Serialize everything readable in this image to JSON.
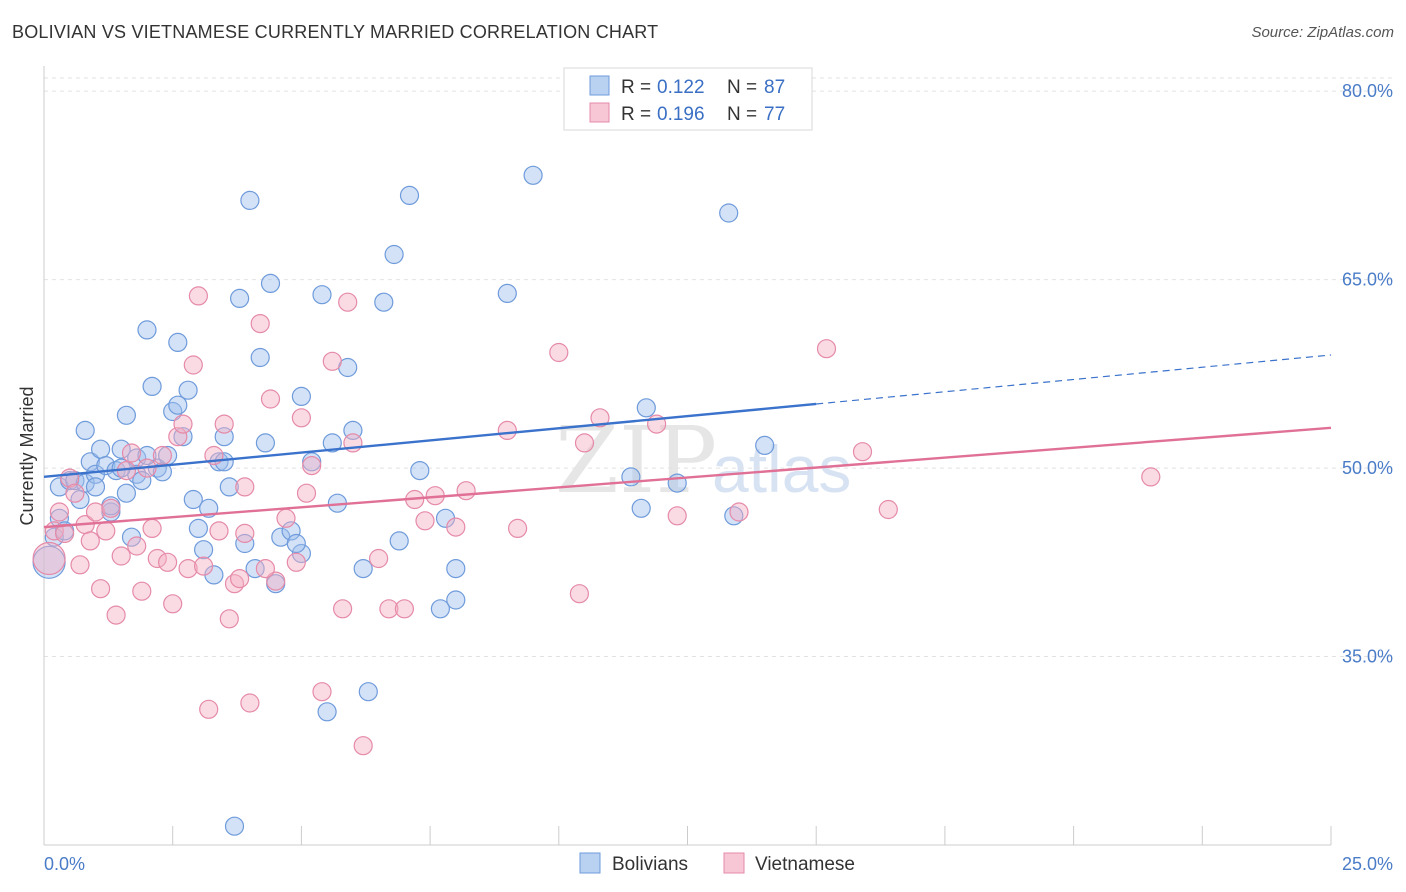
{
  "header": {
    "title": "BOLIVIAN VS VIETNAMESE CURRENTLY MARRIED CORRELATION CHART",
    "source": "Source: ZipAtlas.com"
  },
  "watermark": {
    "part1": "ZIP",
    "part2": "atlas"
  },
  "legend": {
    "r_label": "R =",
    "n_label": "N =",
    "entries": [
      {
        "name": "Bolivians",
        "r": "0.122",
        "n": "87",
        "color": "#9dbfed",
        "line": "#3a72cc"
      },
      {
        "name": "Vietnamese",
        "r": "0.196",
        "n": "77",
        "color": "#f3afc4",
        "line": "#e07096"
      }
    ]
  },
  "chart_data": {
    "type": "scatter",
    "title": "BOLIVIAN VS VIETNAMESE CURRENTLY MARRIED CORRELATION CHART",
    "xlabel": "",
    "ylabel": "Currently Married",
    "xlim": [
      0,
      25
    ],
    "ylim": [
      20,
      82
    ],
    "x_tick_labels": [
      "0.0%",
      "25.0%"
    ],
    "y_ticks": [
      35,
      50,
      65,
      80
    ],
    "y_tick_labels": [
      "35.0%",
      "50.0%",
      "65.0%",
      "80.0%"
    ],
    "grid": true,
    "series": [
      {
        "name": "Bolivians",
        "color": "#9dbfed",
        "trend": {
          "x0": 0,
          "y0": 49.3,
          "x1": 15,
          "y1": 55.1,
          "dashed_to_x": 25,
          "dashed_to_y": 59
        },
        "points": [
          [
            0.1,
            42.5
          ],
          [
            0.2,
            44.5
          ],
          [
            0.3,
            46.0
          ],
          [
            0.3,
            48.5
          ],
          [
            0.4,
            45.0
          ],
          [
            0.5,
            49.0
          ],
          [
            0.6,
            49.0
          ],
          [
            0.7,
            47.5
          ],
          [
            0.8,
            48.8
          ],
          [
            0.9,
            50.5
          ],
          [
            1.0,
            49.5
          ],
          [
            1.1,
            51.5
          ],
          [
            1.2,
            50.2
          ],
          [
            1.3,
            46.5
          ],
          [
            1.3,
            47.0
          ],
          [
            1.4,
            49.8
          ],
          [
            1.5,
            51.5
          ],
          [
            1.6,
            48.0
          ],
          [
            1.6,
            54.2
          ],
          [
            1.7,
            44.5
          ],
          [
            1.8,
            50.8
          ],
          [
            1.8,
            49.5
          ],
          [
            1.9,
            49.0
          ],
          [
            2.0,
            61.0
          ],
          [
            2.1,
            56.5
          ],
          [
            2.2,
            50.0
          ],
          [
            2.3,
            49.7
          ],
          [
            2.4,
            51.0
          ],
          [
            2.5,
            54.5
          ],
          [
            2.6,
            60.0
          ],
          [
            2.7,
            52.5
          ],
          [
            2.8,
            56.2
          ],
          [
            2.9,
            47.5
          ],
          [
            3.0,
            45.2
          ],
          [
            3.1,
            43.5
          ],
          [
            3.2,
            46.8
          ],
          [
            3.3,
            41.5
          ],
          [
            3.4,
            50.5
          ],
          [
            3.5,
            52.5
          ],
          [
            3.6,
            48.5
          ],
          [
            3.8,
            63.5
          ],
          [
            3.9,
            44.0
          ],
          [
            4.0,
            71.3
          ],
          [
            4.1,
            42.0
          ],
          [
            4.2,
            58.8
          ],
          [
            4.3,
            52.0
          ],
          [
            4.4,
            64.7
          ],
          [
            4.5,
            40.8
          ],
          [
            4.6,
            44.5
          ],
          [
            4.8,
            45.0
          ],
          [
            5.0,
            55.7
          ],
          [
            5.0,
            43.2
          ],
          [
            5.2,
            50.5
          ],
          [
            5.4,
            63.8
          ],
          [
            5.5,
            30.6
          ],
          [
            5.6,
            52.0
          ],
          [
            5.7,
            47.2
          ],
          [
            5.9,
            58.0
          ],
          [
            6.0,
            53.0
          ],
          [
            6.2,
            42.0
          ],
          [
            6.3,
            32.2
          ],
          [
            6.6,
            63.2
          ],
          [
            6.8,
            67.0
          ],
          [
            6.9,
            44.2
          ],
          [
            7.1,
            71.7
          ],
          [
            7.3,
            49.8
          ],
          [
            7.7,
            38.8
          ],
          [
            8.0,
            42.0
          ],
          [
            8.0,
            39.5
          ],
          [
            9.0,
            63.9
          ],
          [
            9.5,
            73.3
          ],
          [
            11.4,
            49.3
          ],
          [
            11.6,
            46.8
          ],
          [
            11.7,
            54.8
          ],
          [
            12.3,
            48.8
          ],
          [
            13.3,
            70.3
          ],
          [
            13.4,
            46.2
          ],
          [
            14.0,
            51.8
          ],
          [
            3.7,
            21.5
          ],
          [
            1.5,
            50.0
          ],
          [
            2.0,
            51.0
          ],
          [
            0.8,
            53.0
          ],
          [
            1.0,
            48.5
          ],
          [
            2.6,
            55.0
          ],
          [
            3.5,
            50.5
          ],
          [
            4.9,
            44.0
          ],
          [
            7.8,
            46.0
          ]
        ]
      },
      {
        "name": "Vietnamese",
        "color": "#f3afc4",
        "trend": {
          "x0": 0,
          "y0": 45.3,
          "x1": 25,
          "y1": 53.2
        },
        "points": [
          [
            0.1,
            42.8
          ],
          [
            0.2,
            45.0
          ],
          [
            0.3,
            46.5
          ],
          [
            0.4,
            44.8
          ],
          [
            0.5,
            49.2
          ],
          [
            0.6,
            48.0
          ],
          [
            0.7,
            42.3
          ],
          [
            0.8,
            45.5
          ],
          [
            0.9,
            44.2
          ],
          [
            1.0,
            46.5
          ],
          [
            1.1,
            40.4
          ],
          [
            1.2,
            45.0
          ],
          [
            1.3,
            46.8
          ],
          [
            1.4,
            38.3
          ],
          [
            1.5,
            43.0
          ],
          [
            1.6,
            49.8
          ],
          [
            1.7,
            51.2
          ],
          [
            1.8,
            43.8
          ],
          [
            1.9,
            40.2
          ],
          [
            2.0,
            50.0
          ],
          [
            2.1,
            45.2
          ],
          [
            2.2,
            42.8
          ],
          [
            2.3,
            51.0
          ],
          [
            2.4,
            42.5
          ],
          [
            2.5,
            39.2
          ],
          [
            2.6,
            52.5
          ],
          [
            2.7,
            53.5
          ],
          [
            2.8,
            42.0
          ],
          [
            2.9,
            58.2
          ],
          [
            3.0,
            63.7
          ],
          [
            3.1,
            42.2
          ],
          [
            3.2,
            30.8
          ],
          [
            3.3,
            51.0
          ],
          [
            3.4,
            45.0
          ],
          [
            3.5,
            53.5
          ],
          [
            3.6,
            38.0
          ],
          [
            3.7,
            40.8
          ],
          [
            3.8,
            41.2
          ],
          [
            3.9,
            48.5
          ],
          [
            4.0,
            31.3
          ],
          [
            4.2,
            61.5
          ],
          [
            4.4,
            55.5
          ],
          [
            4.5,
            41.0
          ],
          [
            4.7,
            46.0
          ],
          [
            4.9,
            42.5
          ],
          [
            5.0,
            54.0
          ],
          [
            5.1,
            48.0
          ],
          [
            5.2,
            50.2
          ],
          [
            5.4,
            32.2
          ],
          [
            5.6,
            58.5
          ],
          [
            5.8,
            38.8
          ],
          [
            5.9,
            63.2
          ],
          [
            6.0,
            52.0
          ],
          [
            6.2,
            27.9
          ],
          [
            6.5,
            42.8
          ],
          [
            6.7,
            38.8
          ],
          [
            7.0,
            38.8
          ],
          [
            7.2,
            47.5
          ],
          [
            7.4,
            45.8
          ],
          [
            7.6,
            47.8
          ],
          [
            8.0,
            45.3
          ],
          [
            8.2,
            48.2
          ],
          [
            9.0,
            53.0
          ],
          [
            9.2,
            45.2
          ],
          [
            10.0,
            59.2
          ],
          [
            10.4,
            40.0
          ],
          [
            10.5,
            52.0
          ],
          [
            10.8,
            54.0
          ],
          [
            11.9,
            53.5
          ],
          [
            12.3,
            46.2
          ],
          [
            13.5,
            46.5
          ],
          [
            15.2,
            59.5
          ],
          [
            15.9,
            51.3
          ],
          [
            16.4,
            46.7
          ],
          [
            21.5,
            49.3
          ],
          [
            3.9,
            44.8
          ],
          [
            4.3,
            42.0
          ]
        ]
      }
    ]
  }
}
